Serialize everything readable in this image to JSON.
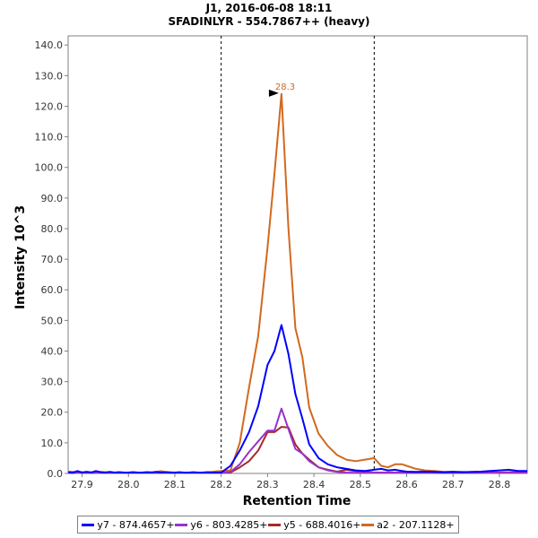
{
  "title": "J1, 2016-06-08 18:11",
  "subtitle": "SFADINLYR - 554.7867++ (heavy)",
  "chart_data": {
    "type": "line",
    "title": "J1, 2016-06-08 18:11",
    "subtitle": "SFADINLYR - 554.7867++ (heavy)",
    "xlabel": "Retention Time",
    "ylabel": "Intensity 10^3",
    "xlim": [
      27.87,
      28.86
    ],
    "ylim": [
      0,
      143
    ],
    "x_ticks": [
      27.9,
      28.0,
      28.1,
      28.2,
      28.3,
      28.4,
      28.5,
      28.6,
      28.7,
      28.8
    ],
    "x_tick_labels": [
      "27.9",
      "28.0",
      "28.1",
      "28.2",
      "28.3",
      "28.4",
      "28.5",
      "28.6",
      "28.7",
      "28.8"
    ],
    "y_ticks": [
      0,
      10,
      20,
      30,
      40,
      50,
      60,
      70,
      80,
      90,
      100,
      110,
      120,
      130,
      140
    ],
    "y_tick_labels": [
      "0.0",
      "10.0",
      "20.0",
      "30.0",
      "40.0",
      "50.0",
      "60.0",
      "70.0",
      "80.0",
      "90.0",
      "100.0",
      "110.0",
      "120.0",
      "130.0",
      "140.0"
    ],
    "vlines": [
      28.2,
      28.53
    ],
    "peak_annotation": {
      "x": 28.33,
      "y": 124.0,
      "label": "28.3",
      "color": "#d2691e"
    },
    "x": [
      27.87,
      27.88,
      27.89,
      27.9,
      27.91,
      27.92,
      27.93,
      27.94,
      27.95,
      27.96,
      27.97,
      27.98,
      27.99,
      28.0,
      28.01,
      28.02,
      28.03,
      28.04,
      28.05,
      28.06,
      28.07,
      28.08,
      28.09,
      28.1,
      28.11,
      28.12,
      28.13,
      28.14,
      28.15,
      28.16,
      28.17,
      28.18,
      28.19,
      28.2,
      28.22,
      28.24,
      28.26,
      28.28,
      28.3,
      28.315,
      28.33,
      28.345,
      28.36,
      28.375,
      28.39,
      28.41,
      28.43,
      28.45,
      28.47,
      28.49,
      28.51,
      28.53,
      28.545,
      28.56,
      28.575,
      28.59,
      28.6,
      28.62,
      28.64,
      28.66,
      28.68,
      28.7,
      28.72,
      28.74,
      28.76,
      28.78,
      28.8,
      28.82,
      28.84,
      28.86
    ],
    "series": [
      {
        "name": "y7 - 874.4657+",
        "color": "#0000ff",
        "values": [
          0.3,
          0.2,
          0.8,
          0.3,
          0.5,
          0.3,
          0.8,
          0.4,
          0.3,
          0.5,
          0.3,
          0.4,
          0.3,
          0.3,
          0.4,
          0.3,
          0.3,
          0.4,
          0.3,
          0.5,
          0.3,
          0.4,
          0.3,
          0.3,
          0.4,
          0.3,
          0.3,
          0.4,
          0.3,
          0.3,
          0.4,
          0.3,
          0.3,
          0.3,
          2.5,
          7.5,
          13.5,
          22.0,
          35.5,
          40.0,
          48.5,
          39.0,
          26.0,
          18.0,
          9.5,
          5.0,
          3.0,
          2.0,
          1.5,
          1.0,
          0.8,
          1.2,
          1.5,
          1.0,
          1.2,
          0.8,
          0.6,
          0.5,
          0.6,
          0.5,
          0.4,
          0.5,
          0.4,
          0.5,
          0.6,
          0.8,
          1.0,
          1.2,
          0.8,
          0.8
        ]
      },
      {
        "name": "y6 - 803.4285+",
        "color": "#9932cc",
        "values": [
          0.5,
          0.4,
          0.3,
          0.3,
          0.2,
          0.3,
          0.2,
          0.3,
          0.2,
          0.3,
          0.2,
          0.2,
          0.3,
          0.2,
          0.2,
          0.3,
          0.2,
          0.2,
          0.3,
          0.2,
          0.2,
          0.3,
          0.2,
          0.2,
          0.3,
          0.2,
          0.2,
          0.3,
          0.2,
          0.2,
          0.2,
          0.2,
          0.2,
          0.2,
          0.5,
          3.0,
          7.0,
          10.5,
          14.0,
          14.0,
          21.2,
          14.5,
          8.0,
          6.5,
          4.0,
          2.0,
          1.0,
          0.5,
          0.3,
          0.2,
          0.2,
          0.3,
          0.2,
          0.2,
          0.3,
          0.2,
          0.2,
          0.2,
          0.3,
          0.2,
          0.2,
          0.2,
          0.3,
          0.2,
          0.2,
          0.3,
          0.2,
          0.2,
          0.2,
          0.3
        ]
      },
      {
        "name": "y5 - 688.4016+",
        "color": "#a52a2a",
        "values": [
          0.3,
          0.3,
          0.4,
          0.3,
          0.3,
          0.3,
          0.4,
          0.3,
          0.3,
          0.3,
          0.3,
          0.3,
          0.3,
          0.3,
          0.3,
          0.3,
          0.3,
          0.3,
          0.3,
          0.3,
          0.3,
          0.3,
          0.3,
          0.3,
          0.3,
          0.3,
          0.3,
          0.3,
          0.3,
          0.3,
          0.3,
          0.3,
          0.3,
          0.3,
          0.3,
          2.0,
          4.0,
          7.5,
          13.5,
          13.5,
          15.2,
          15.0,
          9.5,
          6.5,
          4.5,
          2.0,
          1.2,
          0.6,
          1.2,
          0.8,
          0.5,
          0.3,
          0.3,
          0.3,
          0.3,
          0.3,
          0.3,
          0.3,
          0.3,
          0.3,
          0.3,
          0.3,
          0.3,
          0.3,
          0.3,
          0.3,
          0.3,
          0.3,
          0.3,
          0.3
        ]
      },
      {
        "name": "a2 - 207.1128+",
        "color": "#d2691e",
        "values": [
          0.6,
          0.5,
          0.5,
          0.4,
          0.5,
          0.4,
          0.4,
          0.5,
          0.4,
          0.4,
          0.3,
          0.4,
          0.3,
          0.3,
          0.4,
          0.3,
          0.3,
          0.4,
          0.4,
          0.5,
          0.8,
          0.5,
          0.4,
          0.3,
          0.3,
          0.3,
          0.3,
          0.3,
          0.3,
          0.3,
          0.4,
          0.5,
          0.7,
          0.8,
          1.0,
          10.0,
          28.0,
          45.0,
          74.0,
          98.0,
          124.0,
          80.0,
          47.5,
          38.0,
          21.5,
          13.0,
          9.0,
          6.0,
          4.5,
          4.0,
          4.5,
          5.0,
          2.5,
          2.0,
          3.0,
          3.0,
          2.5,
          1.5,
          1.0,
          0.8,
          0.5,
          0.6,
          0.5,
          0.4,
          0.4,
          0.4,
          0.3,
          0.4,
          0.4,
          0.3
        ]
      }
    ],
    "legend_position": "bottom"
  }
}
